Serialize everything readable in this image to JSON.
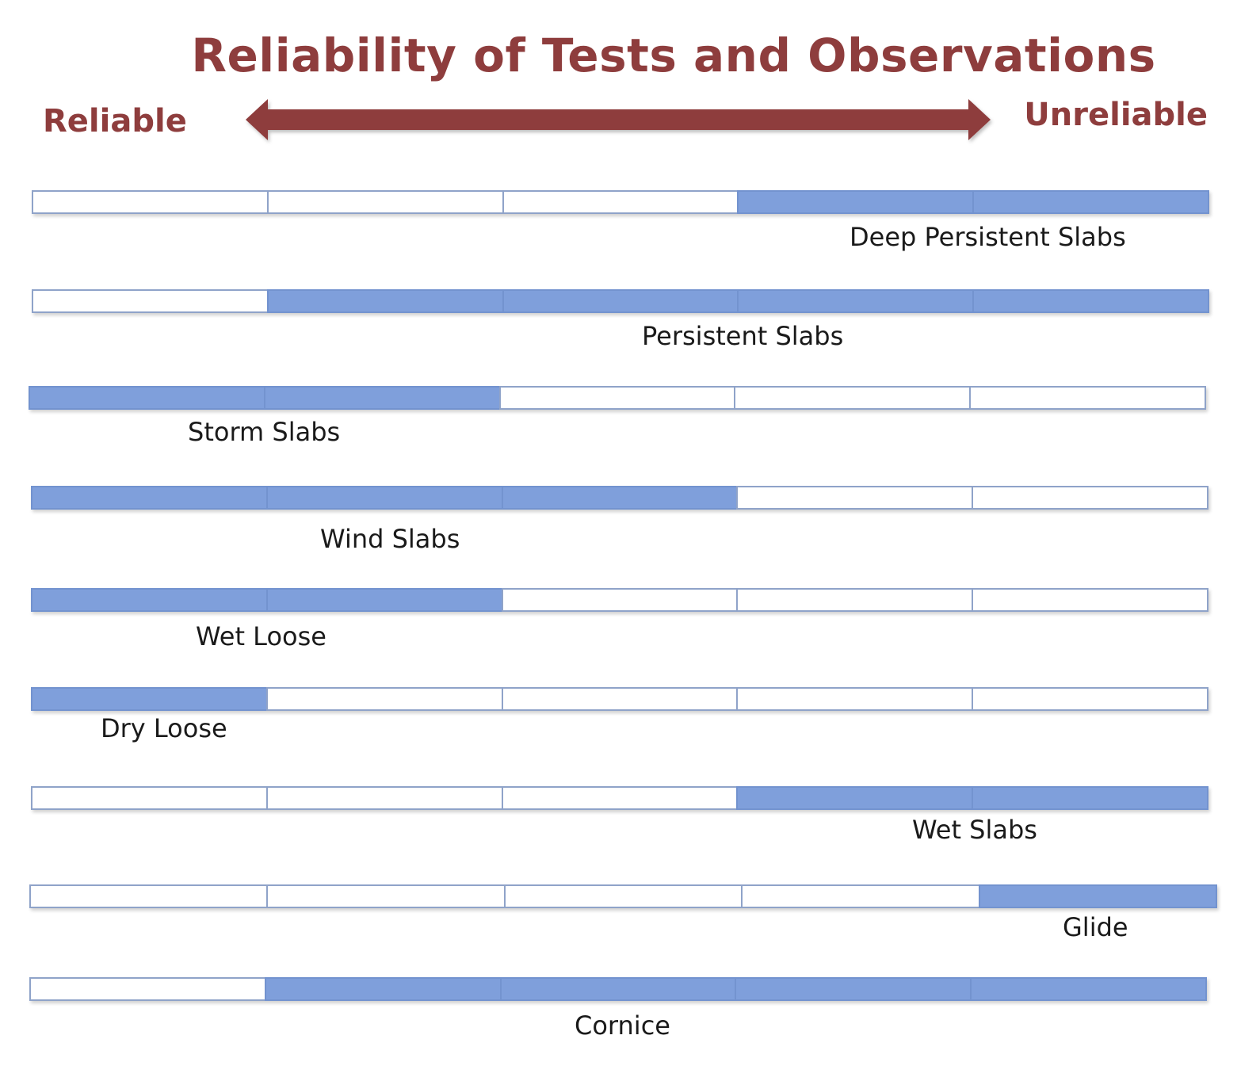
{
  "title": "Reliability of Tests and Observations",
  "scale": {
    "left_label": "Reliable",
    "right_label": "Unreliable",
    "arrow_color": "#8e3d3d"
  },
  "colors": {
    "filled": "#7f9fdb",
    "border": "#8fa3c9",
    "title": "#8e3d3d"
  },
  "segments_per_bar": 5,
  "rows": [
    {
      "label": "Deep Persistent Slabs",
      "filled_from": 4,
      "filled_to": 5
    },
    {
      "label": "Persistent Slabs",
      "filled_from": 2,
      "filled_to": 5
    },
    {
      "label": "Storm Slabs",
      "filled_from": 1,
      "filled_to": 2
    },
    {
      "label": "Wind Slabs",
      "filled_from": 1,
      "filled_to": 3
    },
    {
      "label": "Wet Loose",
      "filled_from": 1,
      "filled_to": 2
    },
    {
      "label": "Dry Loose",
      "filled_from": 1,
      "filled_to": 1
    },
    {
      "label": "Wet Slabs",
      "filled_from": 4,
      "filled_to": 5
    },
    {
      "label": "Glide",
      "filled_from": 5,
      "filled_to": 5
    },
    {
      "label": "Cornice",
      "filled_from": 2,
      "filled_to": 5
    }
  ]
}
